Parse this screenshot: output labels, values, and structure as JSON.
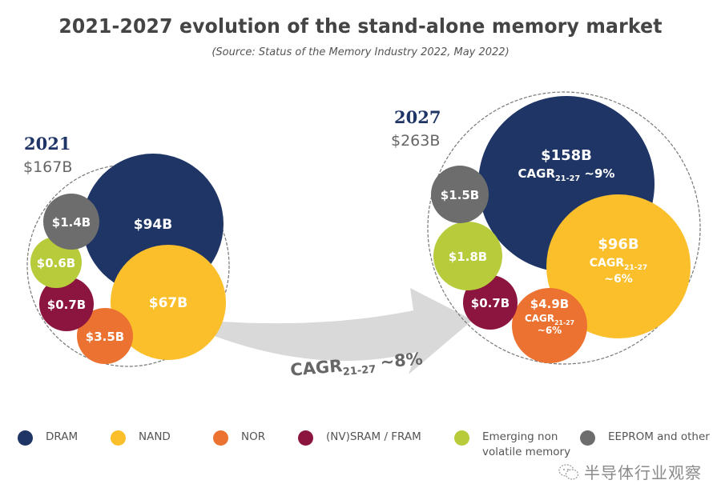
{
  "chart_data": {
    "type": "bubble",
    "title": "2021-2027 evolution of the stand-alone memory market",
    "subtitle": "(Source: Status of the Memory Industry 2022, May 2022)",
    "categories": [
      "DRAM",
      "NAND",
      "NOR",
      "(NV)SRAM / FRAM",
      "Emerging non volatile memory",
      "EEPROM and other"
    ],
    "colors": {
      "DRAM": "#1f3566",
      "NAND": "#fbbf2b",
      "NOR": "#ec7231",
      "(NV)SRAM / FRAM": "#8c1540",
      "Emerging non volatile memory": "#b7cb3b",
      "EEPROM and other": "#6d6d6d"
    },
    "series": [
      {
        "name": "2021",
        "year_label": "2021",
        "total_label": "$167B",
        "total": 167,
        "values": [
          {
            "category": "DRAM",
            "value": 94,
            "label": "$94B"
          },
          {
            "category": "NAND",
            "value": 67,
            "label": "$67B"
          },
          {
            "category": "NOR",
            "value": 3.5,
            "label": "$3.5B"
          },
          {
            "category": "(NV)SRAM / FRAM",
            "value": 0.7,
            "label": "$0.7B"
          },
          {
            "category": "Emerging non volatile memory",
            "value": 0.6,
            "label": "$0.6B"
          },
          {
            "category": "EEPROM and other",
            "value": 1.4,
            "label": "$1.4B"
          }
        ]
      },
      {
        "name": "2027",
        "year_label": "2027",
        "total_label": "$263B",
        "total": 263,
        "values": [
          {
            "category": "DRAM",
            "value": 158,
            "label": "$158B",
            "cagr": "~9%"
          },
          {
            "category": "NAND",
            "value": 96,
            "label": "$96B",
            "cagr": "~6%"
          },
          {
            "category": "NOR",
            "value": 4.9,
            "label": "$4.9B",
            "cagr": "~6%"
          },
          {
            "category": "(NV)SRAM / FRAM",
            "value": 0.7,
            "label": "$0.7B"
          },
          {
            "category": "Emerging non volatile memory",
            "value": 1.8,
            "label": "$1.8B"
          },
          {
            "category": "EEPROM and other",
            "value": 1.5,
            "label": "$1.5B"
          }
        ]
      }
    ],
    "annotation": {
      "cagr_prefix": "CAGR",
      "cagr_sub": "21-27",
      "cagr_overall": "~8%"
    },
    "legend_position": "bottom"
  },
  "legend": [
    {
      "label": "DRAM",
      "color": "#1f3566"
    },
    {
      "label": "NAND",
      "color": "#fbbf2b"
    },
    {
      "label": "NOR",
      "color": "#ec7231"
    },
    {
      "label": "(NV)SRAM / FRAM",
      "color": "#8c1540"
    },
    {
      "label": "Emerging non\nvolatile memory",
      "color": "#b7cb3b"
    },
    {
      "label": "EEPROM and other",
      "color": "#6d6d6d"
    }
  ],
  "watermark": {
    "icon": "wechat-icon",
    "text": "半导体行业观察"
  }
}
